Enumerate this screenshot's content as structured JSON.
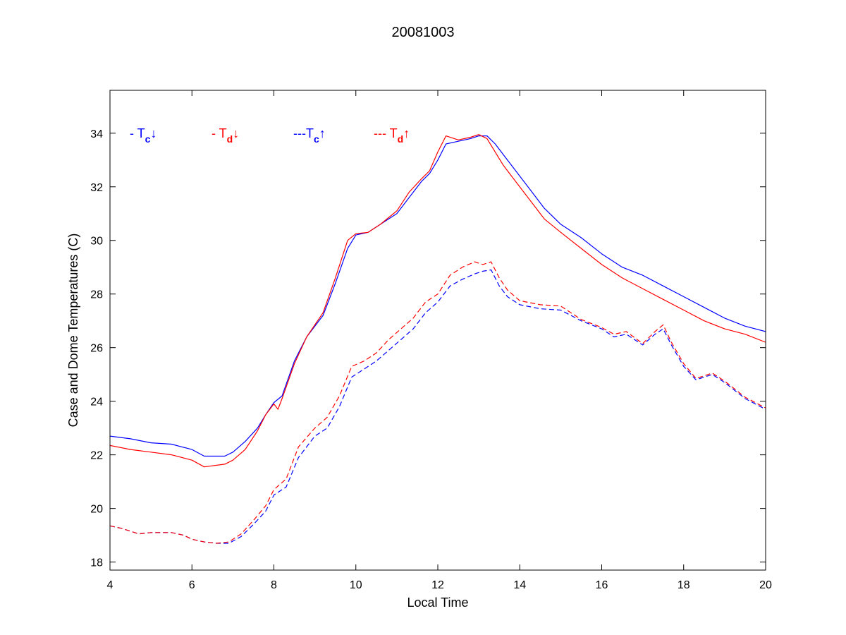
{
  "chart_data": {
    "type": "line",
    "title": "20081003",
    "xlabel": "Local Time",
    "ylabel": "Case and Dome Temperatures (C)",
    "xlim": [
      4,
      20
    ],
    "ylim": [
      17.7,
      35.6
    ],
    "xticks": [
      4,
      6,
      8,
      10,
      12,
      14,
      16,
      18,
      20
    ],
    "yticks": [
      18,
      20,
      22,
      24,
      26,
      28,
      30,
      32,
      34
    ],
    "grid": false,
    "legend_position": "top-left",
    "colors": {
      "blue": "#0000ff",
      "red": "#ff0000"
    },
    "series": [
      {
        "legend": {
          "prefix": "- T",
          "sub": "c",
          "arrow": "↓"
        },
        "color": "#0000ff",
        "style": "solid",
        "x": [
          4.0,
          4.5,
          5.0,
          5.5,
          6.0,
          6.3,
          6.8,
          7.0,
          7.3,
          7.6,
          7.8,
          8.0,
          8.2,
          8.5,
          8.8,
          9.2,
          9.5,
          9.8,
          10.0,
          10.3,
          10.6,
          11.0,
          11.3,
          11.6,
          11.8,
          12.0,
          12.2,
          12.5,
          12.8,
          13.0,
          13.2,
          13.4,
          13.6,
          13.8,
          14.2,
          14.6,
          15.0,
          15.5,
          16.0,
          16.5,
          17.0,
          17.5,
          18.0,
          18.5,
          19.0,
          19.5,
          20.0
        ],
        "values": [
          22.7,
          22.6,
          22.45,
          22.4,
          22.2,
          21.95,
          21.95,
          22.1,
          22.5,
          23.0,
          23.5,
          23.95,
          24.2,
          25.5,
          26.4,
          27.2,
          28.4,
          29.7,
          30.2,
          30.3,
          30.6,
          31.0,
          31.6,
          32.2,
          32.5,
          33.0,
          33.6,
          33.7,
          33.8,
          33.9,
          33.9,
          33.6,
          33.2,
          32.8,
          32.0,
          31.2,
          30.6,
          30.1,
          29.5,
          29.0,
          28.7,
          28.3,
          27.9,
          27.5,
          27.1,
          26.8,
          26.6
        ]
      },
      {
        "legend": {
          "prefix": "- T",
          "sub": "d",
          "arrow": "↓"
        },
        "color": "#ff0000",
        "style": "solid",
        "x": [
          4.0,
          4.5,
          5.0,
          5.5,
          6.0,
          6.3,
          6.8,
          7.0,
          7.3,
          7.6,
          7.8,
          8.0,
          8.1,
          8.2,
          8.5,
          8.8,
          9.2,
          9.5,
          9.8,
          10.0,
          10.3,
          10.6,
          11.0,
          11.3,
          11.6,
          11.8,
          12.0,
          12.2,
          12.5,
          12.8,
          13.0,
          13.2,
          13.4,
          13.6,
          13.8,
          14.2,
          14.6,
          15.0,
          15.5,
          16.0,
          16.5,
          17.0,
          17.5,
          18.0,
          18.5,
          19.0,
          19.5,
          20.0
        ],
        "values": [
          22.35,
          22.2,
          22.1,
          22.0,
          21.8,
          21.55,
          21.65,
          21.8,
          22.2,
          22.9,
          23.5,
          23.9,
          23.7,
          24.1,
          25.4,
          26.4,
          27.3,
          28.6,
          30.0,
          30.25,
          30.3,
          30.6,
          31.1,
          31.8,
          32.3,
          32.6,
          33.3,
          33.9,
          33.75,
          33.85,
          33.95,
          33.8,
          33.3,
          32.8,
          32.4,
          31.6,
          30.8,
          30.3,
          29.7,
          29.1,
          28.6,
          28.2,
          27.8,
          27.4,
          27.0,
          26.7,
          26.5,
          26.2
        ]
      },
      {
        "legend": {
          "prefix": "---T",
          "sub": "c",
          "arrow": "↑"
        },
        "color": "#0000ff",
        "style": "dashed",
        "x": [
          4.0,
          4.3,
          4.7,
          5.0,
          5.5,
          5.8,
          6.0,
          6.3,
          6.6,
          6.9,
          7.2,
          7.5,
          7.8,
          8.0,
          8.3,
          8.6,
          9.0,
          9.3,
          9.6,
          9.9,
          10.2,
          10.5,
          10.8,
          11.1,
          11.4,
          11.7,
          12.0,
          12.3,
          12.6,
          12.9,
          13.1,
          13.3,
          13.5,
          13.7,
          14.0,
          14.5,
          15.0,
          15.5,
          16.0,
          16.3,
          16.6,
          17.0,
          17.3,
          17.5,
          17.7,
          18.0,
          18.3,
          18.7,
          19.0,
          19.5,
          20.0
        ],
        "values": [
          19.35,
          19.25,
          19.05,
          19.1,
          19.1,
          19.0,
          18.85,
          18.75,
          18.7,
          18.7,
          18.95,
          19.4,
          19.9,
          20.5,
          20.8,
          21.9,
          22.7,
          23.0,
          23.8,
          24.9,
          25.2,
          25.5,
          25.9,
          26.3,
          26.7,
          27.3,
          27.7,
          28.3,
          28.55,
          28.75,
          28.85,
          28.9,
          28.3,
          27.9,
          27.6,
          27.45,
          27.4,
          27.0,
          26.7,
          26.4,
          26.5,
          26.1,
          26.5,
          26.7,
          26.1,
          25.3,
          24.8,
          25.0,
          24.7,
          24.1,
          23.7
        ]
      },
      {
        "legend": {
          "prefix": "--- T",
          "sub": "d",
          "arrow": "↑"
        },
        "color": "#ff0000",
        "style": "dashed",
        "x": [
          4.0,
          4.3,
          4.7,
          5.0,
          5.5,
          5.8,
          6.0,
          6.3,
          6.6,
          6.9,
          7.2,
          7.5,
          7.8,
          8.0,
          8.3,
          8.6,
          9.0,
          9.3,
          9.6,
          9.9,
          10.2,
          10.5,
          10.8,
          11.1,
          11.4,
          11.7,
          12.0,
          12.3,
          12.6,
          12.9,
          13.1,
          13.3,
          13.5,
          13.7,
          14.0,
          14.5,
          15.0,
          15.5,
          16.0,
          16.3,
          16.6,
          17.0,
          17.3,
          17.5,
          17.7,
          18.0,
          18.3,
          18.7,
          19.0,
          19.5,
          20.0
        ],
        "values": [
          19.35,
          19.25,
          19.05,
          19.1,
          19.1,
          19.0,
          18.85,
          18.75,
          18.7,
          18.75,
          19.05,
          19.55,
          20.1,
          20.7,
          21.1,
          22.3,
          23.0,
          23.4,
          24.2,
          25.3,
          25.5,
          25.8,
          26.3,
          26.7,
          27.1,
          27.7,
          28.0,
          28.7,
          29.0,
          29.2,
          29.1,
          29.2,
          28.6,
          28.15,
          27.75,
          27.6,
          27.55,
          27.05,
          26.75,
          26.5,
          26.6,
          26.15,
          26.6,
          26.85,
          26.2,
          25.4,
          24.85,
          25.05,
          24.75,
          24.15,
          23.75
        ]
      }
    ]
  }
}
